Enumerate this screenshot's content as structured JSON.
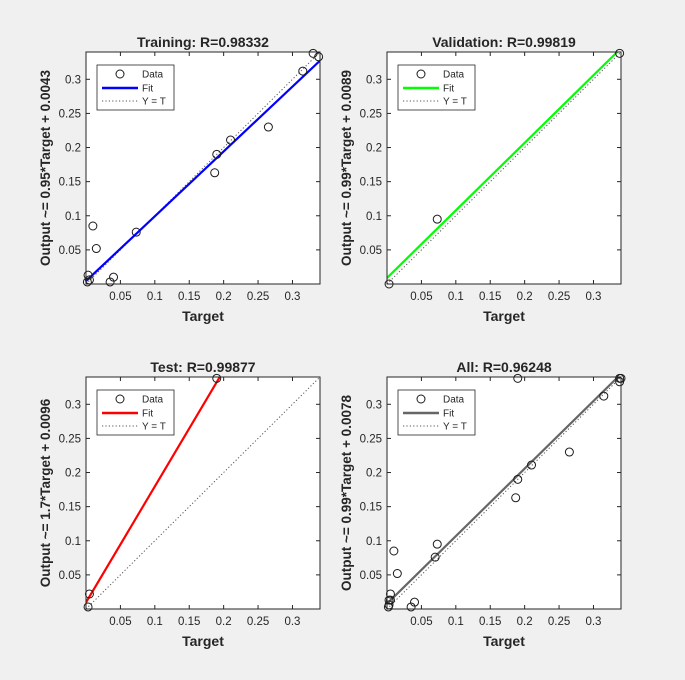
{
  "figure": {
    "background": "#f0f0f0",
    "axes_background": "#ffffff",
    "axis_color": "#262626"
  },
  "chart_data": [
    {
      "type": "scatter",
      "title": "Training: R=0.98332",
      "xlabel": "Target",
      "ylabel": "Output ~= 0.95*Target + 0.0043",
      "xlim": [
        0,
        0.34
      ],
      "ylim": [
        0,
        0.34
      ],
      "xticks": [
        "0.05",
        "0.1",
        "0.15",
        "0.2",
        "0.25",
        "0.3"
      ],
      "yticks": [
        "0.05",
        "0.1",
        "0.15",
        "0.2",
        "0.25",
        "0.3"
      ],
      "grid": false,
      "legend": {
        "position": "top-left",
        "entries": [
          "Data",
          "Fit",
          "Y = T"
        ]
      },
      "fit": {
        "slope": 0.95,
        "intercept": 0.0043,
        "color": "#0000ff"
      },
      "identity_line": true,
      "series": [
        {
          "name": "Data",
          "x": [
            0.002,
            0.003,
            0.005,
            0.01,
            0.015,
            0.035,
            0.04,
            0.073,
            0.187,
            0.19,
            0.21,
            0.265,
            0.315,
            0.33,
            0.338
          ],
          "y": [
            0.003,
            0.013,
            0.006,
            0.085,
            0.052,
            0.003,
            0.01,
            0.076,
            0.163,
            0.19,
            0.211,
            0.23,
            0.312,
            0.338,
            0.333
          ]
        }
      ]
    },
    {
      "type": "scatter",
      "title": "Validation: R=0.99819",
      "xlabel": "Target",
      "ylabel": "Output ~= 0.99*Target + 0.0089",
      "xlim": [
        0,
        0.34
      ],
      "ylim": [
        0,
        0.34
      ],
      "xticks": [
        "0.05",
        "0.1",
        "0.15",
        "0.2",
        "0.25",
        "0.3"
      ],
      "yticks": [
        "0.05",
        "0.1",
        "0.15",
        "0.2",
        "0.25",
        "0.3"
      ],
      "grid": false,
      "legend": {
        "position": "top-left",
        "entries": [
          "Data",
          "Fit",
          "Y = T"
        ]
      },
      "fit": {
        "slope": 0.99,
        "intercept": 0.0089,
        "color": "#00ff00"
      },
      "identity_line": true,
      "series": [
        {
          "name": "Data",
          "x": [
            0.003,
            0.073,
            0.338
          ],
          "y": [
            0.0,
            0.095,
            0.338
          ]
        }
      ]
    },
    {
      "type": "scatter",
      "title": "Test: R=0.99877",
      "xlabel": "Target",
      "ylabel": "Output ~= 1.7*Target + 0.0096",
      "xlim": [
        0,
        0.34
      ],
      "ylim": [
        0,
        0.34
      ],
      "xticks": [
        "0.05",
        "0.1",
        "0.15",
        "0.2",
        "0.25",
        "0.3"
      ],
      "yticks": [
        "0.05",
        "0.1",
        "0.15",
        "0.2",
        "0.25",
        "0.3"
      ],
      "grid": false,
      "legend": {
        "position": "top-left",
        "entries": [
          "Data",
          "Fit",
          "Y = T"
        ]
      },
      "fit": {
        "slope": 1.7,
        "intercept": 0.0096,
        "color": "#ff0000"
      },
      "identity_line": true,
      "series": [
        {
          "name": "Data",
          "x": [
            0.003,
            0.005,
            0.19
          ],
          "y": [
            0.003,
            0.022,
            0.338
          ]
        }
      ]
    },
    {
      "type": "scatter",
      "title": "All: R=0.96248",
      "xlabel": "Target",
      "ylabel": "Output ~= 0.99*Target + 0.0078",
      "xlim": [
        0,
        0.34
      ],
      "ylim": [
        0,
        0.34
      ],
      "xticks": [
        "0.05",
        "0.1",
        "0.15",
        "0.2",
        "0.25",
        "0.3"
      ],
      "yticks": [
        "0.05",
        "0.1",
        "0.15",
        "0.2",
        "0.25",
        "0.3"
      ],
      "grid": false,
      "legend": {
        "position": "top-left",
        "entries": [
          "Data",
          "Fit",
          "Y = T"
        ]
      },
      "fit": {
        "slope": 0.99,
        "intercept": 0.0078,
        "color": "#666666"
      },
      "identity_line": true,
      "series": [
        {
          "name": "Data",
          "x": [
            0.002,
            0.003,
            0.003,
            0.005,
            0.005,
            0.01,
            0.015,
            0.035,
            0.04,
            0.07,
            0.073,
            0.187,
            0.19,
            0.19,
            0.21,
            0.265,
            0.315,
            0.338,
            0.338,
            0.34
          ],
          "y": [
            0.003,
            0.006,
            0.013,
            0.022,
            0.013,
            0.085,
            0.052,
            0.003,
            0.01,
            0.076,
            0.095,
            0.163,
            0.19,
            0.338,
            0.211,
            0.23,
            0.312,
            0.338,
            0.333,
            0.338
          ]
        }
      ]
    }
  ]
}
